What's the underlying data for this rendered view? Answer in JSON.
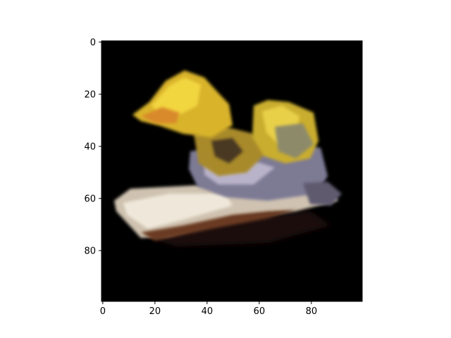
{
  "chart_data": {
    "type": "heatmap",
    "title": "",
    "xlabel": "",
    "ylabel": "",
    "image_size": [
      100,
      100
    ],
    "xlim": [
      -0.5,
      99.5
    ],
    "ylim": [
      99.5,
      -0.5
    ],
    "x_ticks": [
      0,
      20,
      40,
      60,
      80
    ],
    "y_ticks": [
      0,
      20,
      40,
      60,
      80
    ],
    "x_tick_labels": [
      "0",
      "20",
      "40",
      "60",
      "80"
    ],
    "y_tick_labels": [
      "0",
      "20",
      "40",
      "60",
      "80"
    ],
    "grid": false,
    "background": "#000000",
    "colors": {
      "yellow": "#e6c22a",
      "ochre": "#a8892a",
      "cream": "#e8e0cf",
      "lavender": "#8a86a8",
      "brown": "#7a4a2a"
    }
  }
}
